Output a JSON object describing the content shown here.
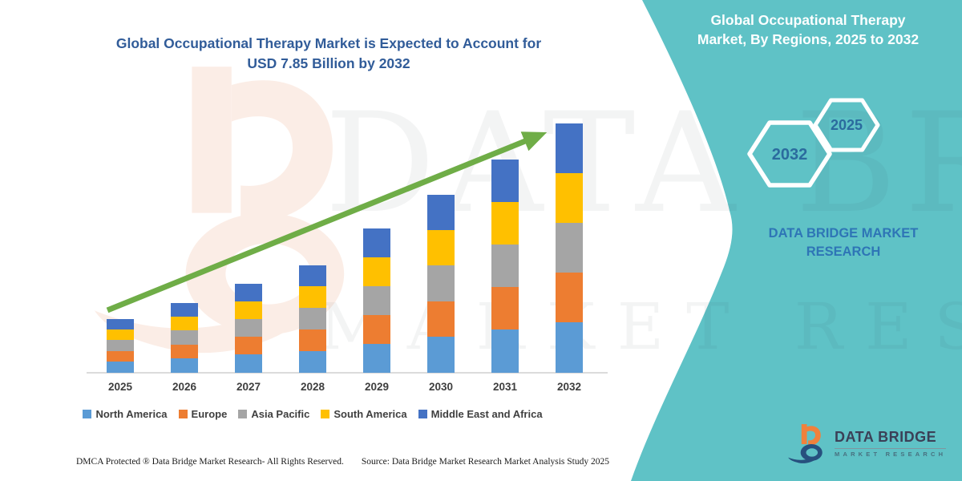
{
  "header": {
    "line1": "Global Occupational Therapy Market is Expected to Account for",
    "line2": "USD 7.85 Billion by 2032"
  },
  "side_panel": {
    "title_line1": "Global Occupational Therapy",
    "title_line2": "Market, By Regions, 2025 to 2032",
    "hex_large_label": "2032",
    "hex_small_label": "2025",
    "brand_line1": "DATA BRIDGE MARKET",
    "brand_line2": "RESEARCH",
    "panel_color": "#5FC2C6"
  },
  "watermark": {
    "line1": "DATA BRIDGE",
    "line2": "MARKET RESEARCH"
  },
  "logo": {
    "name": "DATA BRIDGE",
    "subtitle": "MARKET RESEARCH"
  },
  "footer": {
    "left": "DMCA Protected ® Data Bridge Market Research-  All Rights Reserved.",
    "right": "Source: Data Bridge Market Research  Market Analysis Study 2025"
  },
  "chart_data": {
    "type": "bar",
    "stacked": true,
    "title": "Global Occupational Therapy Market is Expected to Account for USD 7.85 Billion by 2032",
    "unit": "USD Billion",
    "categories": [
      "2025",
      "2026",
      "2027",
      "2028",
      "2029",
      "2030",
      "2031",
      "2032"
    ],
    "series": [
      {
        "name": "North America",
        "color": "#5B9BD5",
        "values": [
          0.35,
          0.45,
          0.57,
          0.68,
          0.91,
          1.13,
          1.36,
          1.58
        ]
      },
      {
        "name": "Europe",
        "color": "#ED7D31",
        "values": [
          0.34,
          0.44,
          0.56,
          0.67,
          0.9,
          1.12,
          1.35,
          1.57
        ]
      },
      {
        "name": "Asia Pacific",
        "color": "#A5A5A5",
        "values": [
          0.35,
          0.45,
          0.56,
          0.68,
          0.9,
          1.13,
          1.35,
          1.57
        ]
      },
      {
        "name": "South America",
        "color": "#FFC000",
        "values": [
          0.34,
          0.44,
          0.56,
          0.67,
          0.91,
          1.12,
          1.34,
          1.56
        ]
      },
      {
        "name": "Middle East and Africa",
        "color": "#4472C4",
        "values": [
          0.34,
          0.44,
          0.55,
          0.66,
          0.9,
          1.11,
          1.34,
          1.57
        ]
      }
    ],
    "totals_estimated": [
      1.72,
      2.22,
      2.8,
      3.36,
      4.52,
      5.61,
      6.74,
      7.85
    ],
    "ylim": [
      0,
      8
    ],
    "y_axis_visible": false,
    "grid": false,
    "legend_position": "bottom",
    "annotations": [
      "green upward trend arrow across bars"
    ],
    "trend_arrow_color": "#6FAD47"
  }
}
